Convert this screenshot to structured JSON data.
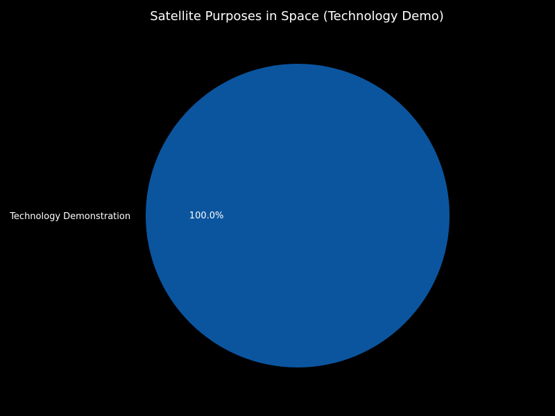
{
  "chart_data": {
    "type": "pie",
    "title": "Satellite Purposes in Space (Technology Demo)",
    "categories": [
      "Technology Demonstration"
    ],
    "values": [
      100
    ],
    "percent_labels": [
      "100.0%"
    ],
    "colors": [
      "#0b559f"
    ],
    "background": "#000000",
    "text_color": "#ffffff",
    "legend": "none"
  }
}
